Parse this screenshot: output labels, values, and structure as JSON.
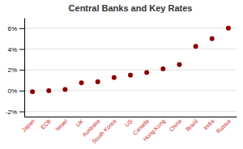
{
  "chart_data": {
    "type": "scatter",
    "title": "Central Banks and Key Rates",
    "categories": [
      "Japan",
      "ECB",
      "Israel",
      "UK",
      "Australia",
      "South Korea",
      "US",
      "Canada",
      "Hong Kong",
      "China",
      "Brazil",
      "India",
      "Russia"
    ],
    "values": [
      -0.001,
      0.0,
      0.001,
      0.0075,
      0.0085,
      0.0125,
      0.015,
      0.0175,
      0.021,
      0.025,
      0.0425,
      0.05,
      0.06
    ],
    "color": "#8B0000",
    "ylim": [
      -0.025,
      0.07
    ],
    "yticks": [
      {
        "value": -0.02,
        "label": "-2%"
      },
      {
        "value": 0.0,
        "label": "0%"
      },
      {
        "value": 0.02,
        "label": "2%"
      },
      {
        "value": 0.04,
        "label": "4%"
      },
      {
        "value": 0.06,
        "label": "6%"
      }
    ],
    "grid": true
  }
}
